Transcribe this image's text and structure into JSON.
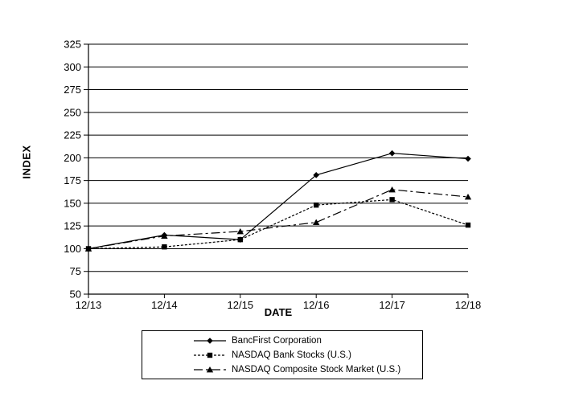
{
  "chart_data": {
    "type": "line",
    "title": "",
    "xlabel": "DATE",
    "ylabel": "INDEX",
    "categories": [
      "12/13",
      "12/14",
      "12/15",
      "12/16",
      "12/17",
      "12/18"
    ],
    "ylim": [
      50,
      325
    ],
    "ytick_step": 25,
    "ytick_labels": [
      "50",
      "75",
      "100",
      "125",
      "150",
      "175",
      "200",
      "225",
      "250",
      "275",
      "300",
      "325"
    ],
    "grid": "horizontal",
    "legend_position": "bottom",
    "colors": {
      "line": "#000000",
      "grid": "#000000",
      "background": "#ffffff",
      "text": "#000000"
    },
    "series": [
      {
        "name": "BancFirst Corporation",
        "line_style": "solid",
        "marker": "diamond",
        "values": [
          100,
          115,
          110,
          181,
          205,
          199
        ]
      },
      {
        "name": "NASDAQ Bank Stocks (U.S.)",
        "line_style": "dotted",
        "marker": "square",
        "values": [
          100,
          102,
          110,
          148,
          154,
          126
        ]
      },
      {
        "name": "NASDAQ Composite Stock Market (U.S.)",
        "line_style": "dashdot",
        "marker": "triangle",
        "values": [
          100,
          114,
          119,
          129,
          165,
          157
        ]
      }
    ]
  }
}
